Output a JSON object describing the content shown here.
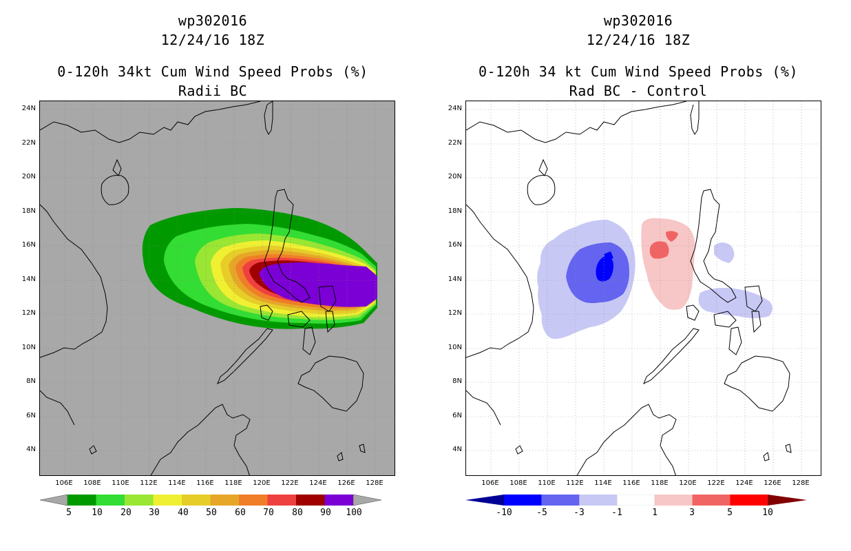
{
  "left": {
    "title1": "wp302016",
    "title2": "12/24/16 18Z",
    "title3": "0-120h 34kt Cum Wind Speed Probs (%)",
    "title4": "Radii BC",
    "lat_labels": [
      "24N",
      "22N",
      "20N",
      "18N",
      "16N",
      "14N",
      "12N",
      "10N",
      "8N",
      "6N",
      "4N"
    ],
    "lon_labels": [
      "106E",
      "108E",
      "110E",
      "112E",
      "114E",
      "116E",
      "118E",
      "120E",
      "122E",
      "124E",
      "126E",
      "128E"
    ],
    "colorbar": {
      "labels": [
        "5",
        "10",
        "20",
        "30",
        "40",
        "50",
        "60",
        "70",
        "80",
        "90",
        "100"
      ],
      "colors": [
        "#009a00",
        "#33dd33",
        "#99e633",
        "#f0f032",
        "#e6cd28",
        "#e6a628",
        "#f07d28",
        "#ef4040",
        "#a00000",
        "#7b00d5"
      ],
      "under_color": "#a8a8a8",
      "over_color": "#a8a8a8"
    },
    "plot": {
      "background": "#a8a8a8",
      "storm_center_lat": 13.6,
      "storm_center_lon": 125.8,
      "contour_levels": [
        5,
        10,
        20,
        30,
        40,
        50,
        60,
        70,
        80,
        90
      ]
    }
  },
  "right": {
    "title1": "wp302016",
    "title2": "12/24/16 18Z",
    "title3": "0-120h 34 kt Cum Wind Speed Probs (%)",
    "title4": "Rad BC - Control",
    "lat_labels": [
      "24N",
      "22N",
      "20N",
      "18N",
      "16N",
      "14N",
      "12N",
      "10N",
      "8N",
      "6N",
      "4N"
    ],
    "lon_labels": [
      "106E",
      "108E",
      "110E",
      "112E",
      "114E",
      "116E",
      "118E",
      "120E",
      "122E",
      "124E",
      "126E",
      "128E"
    ],
    "colorbar": {
      "labels": [
        "-10",
        "-5",
        "-3",
        "-1",
        "1",
        "3",
        "5",
        "10"
      ],
      "colors": [
        "#0000ff",
        "#6464f0",
        "#c8c8f5",
        "#ffffff",
        "#f7c6c6",
        "#f06464",
        "#ff0000"
      ],
      "under_color": "#000096",
      "over_color": "#820000"
    },
    "plot": {
      "background": "#ffffff",
      "difference_regions": [
        {
          "name": "negative-west",
          "min_value": -10,
          "lon": 114.3,
          "lat": 14.6
        },
        {
          "name": "positive-center",
          "max_value": 5,
          "lon": 118.2,
          "lat": 15.9
        },
        {
          "name": "negative-philippines",
          "min_value": -3,
          "lon": 123.0,
          "lat": 12.6
        }
      ]
    }
  }
}
